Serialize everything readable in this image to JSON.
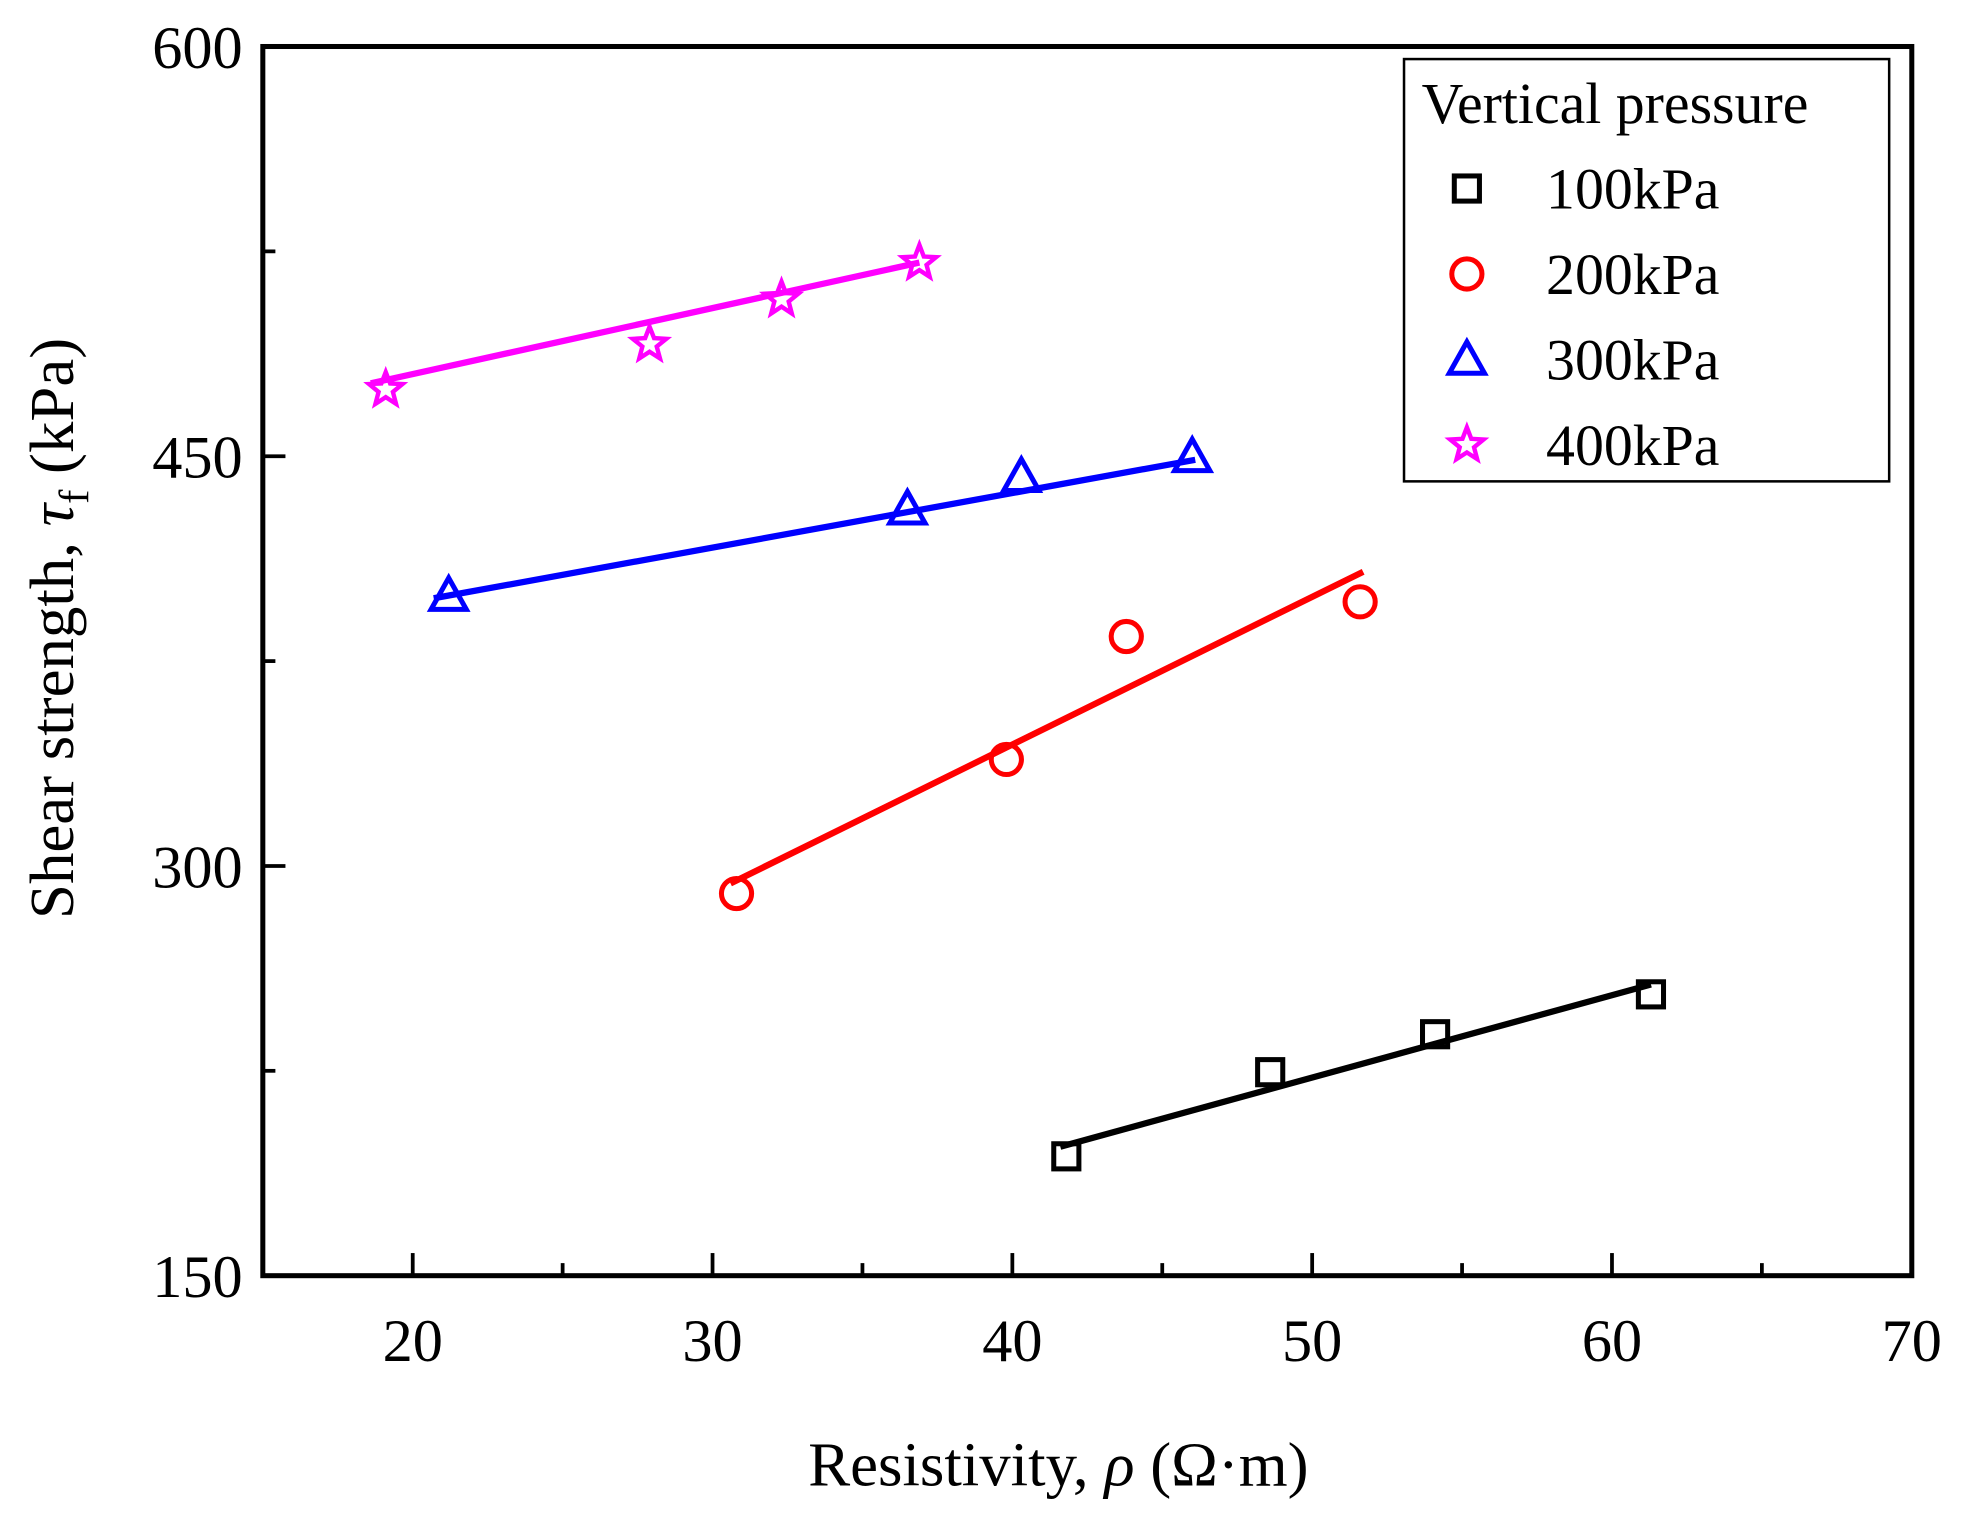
{
  "chart_data": {
    "type": "scatter",
    "title": "",
    "xlabel": {
      "text": "Resistivity, ",
      "symbol": "ρ",
      "unit": " (Ω·m)"
    },
    "ylabel": {
      "text": "Shear strength, ",
      "symbol": "τ",
      "subscript": "f",
      "unit": " (kPa)"
    },
    "xlim": [
      15,
      70
    ],
    "ylim": [
      150,
      600
    ],
    "xticks": [
      20,
      30,
      40,
      50,
      60,
      70
    ],
    "yticks": [
      150,
      300,
      450,
      600
    ],
    "xminor": [
      15,
      25,
      35,
      45,
      55,
      65
    ],
    "yminor": [
      225,
      375,
      525
    ],
    "grid": false,
    "legend": {
      "title": "Vertical pressure",
      "placement": "top-right"
    },
    "series": [
      {
        "name": "100kPa",
        "marker": "square",
        "color": "#000000",
        "x": [
          41.8,
          48.6,
          54.1,
          61.3
        ],
        "y": [
          193.7,
          224.5,
          238.4,
          253.0
        ],
        "fit": {
          "x": [
            41.6,
            61.3
          ],
          "y": [
            197.2,
            256.6
          ]
        }
      },
      {
        "name": "200kPa",
        "marker": "circle",
        "color": "#ff0000",
        "x": [
          30.8,
          39.8,
          43.8,
          51.6
        ],
        "y": [
          289.9,
          339.0,
          384.0,
          396.7
        ],
        "fit": {
          "x": [
            30.6,
            51.7
          ],
          "y": [
            293.6,
            407.7
          ]
        }
      },
      {
        "name": "300kPa",
        "marker": "triangle",
        "color": "#0000ff",
        "x": [
          21.2,
          36.5,
          40.3,
          46.0
        ],
        "y": [
          399.0,
          430.6,
          442.5,
          449.8
        ],
        "fit": {
          "x": [
            20.7,
            46.1
          ],
          "y": [
            398.0,
            448.7
          ]
        }
      },
      {
        "name": "400kPa",
        "marker": "star",
        "color": "#ff00ff",
        "x": [
          19.1,
          27.9,
          32.3,
          36.9
        ],
        "y": [
          474.4,
          491.0,
          507.5,
          520.9
        ],
        "fit": {
          "x": [
            18.6,
            36.9
          ],
          "y": [
            476.7,
            520.9
          ]
        }
      }
    ]
  }
}
